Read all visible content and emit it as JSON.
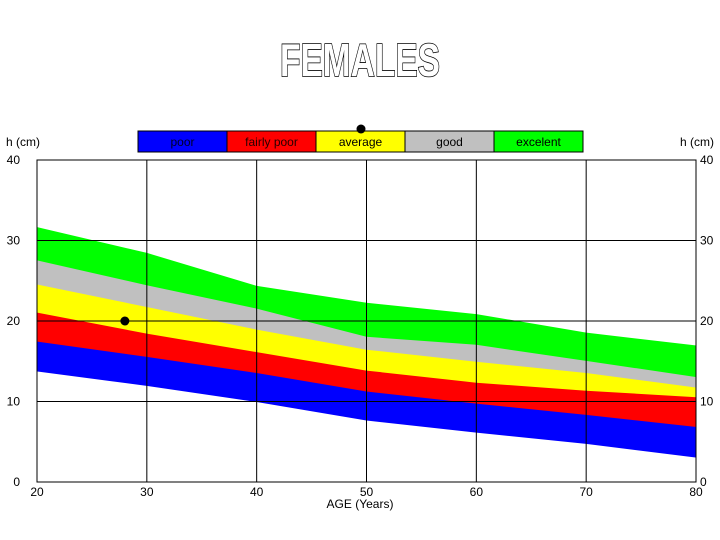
{
  "chart_data": {
    "type": "area",
    "title": "FEMALES",
    "xlabel": "AGE (Years)",
    "ylabel": "h (cm)",
    "ylabel_right": "h (cm)",
    "xlim": [
      20,
      80
    ],
    "ylim": [
      0,
      40
    ],
    "x_ticks": [
      "20",
      "30",
      "40",
      "50",
      "60",
      "70",
      "80"
    ],
    "y_ticks": [
      "0",
      "10",
      "20",
      "30",
      "40"
    ],
    "y_ticks_right": [
      "0",
      "10",
      "20",
      "30",
      "40"
    ],
    "grid": true,
    "legend_position": "top-center",
    "x": [
      20,
      30,
      40,
      50,
      60,
      70,
      80
    ],
    "boundaries": [
      [
        13.8,
        12.0,
        10.0,
        7.7,
        6.2,
        4.8,
        3.1
      ],
      [
        17.5,
        15.6,
        13.6,
        11.3,
        9.8,
        8.4,
        6.9
      ],
      [
        21.1,
        18.5,
        16.2,
        13.9,
        12.4,
        11.4,
        10.6
      ],
      [
        24.6,
        21.8,
        19.0,
        16.5,
        15.0,
        13.6,
        11.8
      ],
      [
        27.6,
        24.5,
        21.6,
        18.1,
        17.1,
        15.1,
        13.1
      ],
      [
        31.6,
        28.4,
        24.3,
        22.2,
        20.8,
        18.5,
        16.9
      ]
    ],
    "series": [
      {
        "name": "poor",
        "color": "#0000ff"
      },
      {
        "name": "fairly poor",
        "color": "#ff0000"
      },
      {
        "name": "average",
        "color": "#ffff00"
      },
      {
        "name": "good",
        "color": "#c0c0c0"
      },
      {
        "name": "excelent",
        "color": "#00ff00"
      }
    ],
    "marker": {
      "x": 28,
      "y": 20
    }
  }
}
